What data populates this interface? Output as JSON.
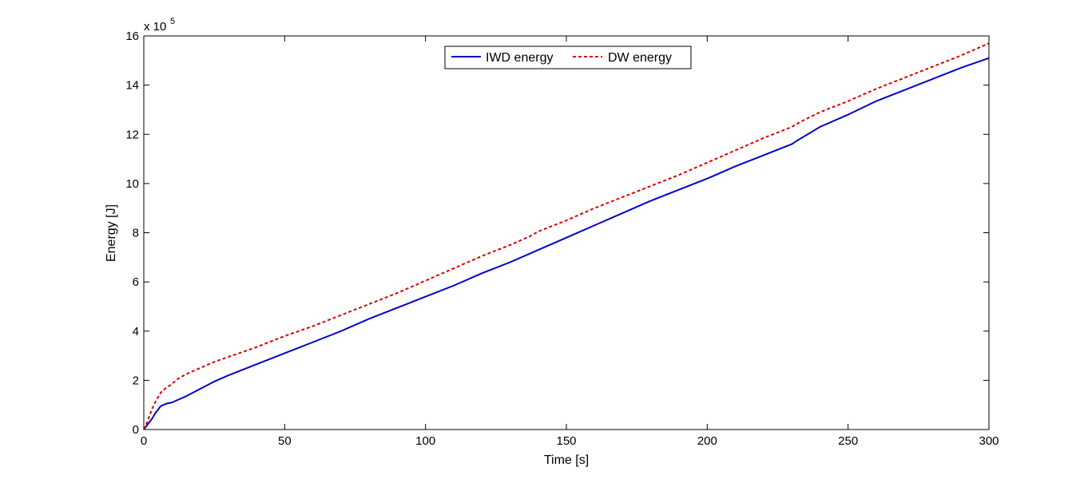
{
  "chart_data": {
    "type": "line",
    "title": "",
    "xlabel": "Time [s]",
    "ylabel": "Energy [J]",
    "xlim": [
      0,
      300
    ],
    "ylim": [
      0,
      16
    ],
    "xticks": [
      0,
      50,
      100,
      150,
      200,
      250,
      300
    ],
    "yticks": [
      0,
      2,
      4,
      6,
      8,
      10,
      12,
      14,
      16
    ],
    "y_multiplier": {
      "base": "x 10",
      "exponent": "5"
    },
    "grid": false,
    "legend_position": "top-center",
    "series": [
      {
        "name": "IWD energy",
        "color": "#0000cc",
        "style": "solid",
        "x": [
          0,
          1,
          2,
          3,
          4,
          5,
          6,
          8,
          10,
          12,
          15,
          20,
          25,
          30,
          40,
          50,
          60,
          70,
          80,
          90,
          100,
          110,
          120,
          130,
          140,
          150,
          160,
          170,
          180,
          190,
          200,
          210,
          220,
          230,
          232,
          240,
          250,
          260,
          270,
          280,
          290,
          300
        ],
        "y": [
          0,
          0.15,
          0.3,
          0.45,
          0.65,
          0.8,
          0.95,
          1.05,
          1.1,
          1.2,
          1.35,
          1.65,
          1.95,
          2.2,
          2.65,
          3.1,
          3.55,
          4.0,
          4.5,
          4.95,
          5.4,
          5.85,
          6.35,
          6.8,
          7.3,
          7.8,
          8.3,
          8.8,
          9.3,
          9.75,
          10.2,
          10.7,
          11.15,
          11.6,
          11.75,
          12.3,
          12.8,
          13.35,
          13.8,
          14.25,
          14.7,
          15.1
        ]
      },
      {
        "name": "DW energy",
        "color": "#dd0000",
        "style": "dashed",
        "x": [
          0,
          1,
          2,
          3,
          4,
          5,
          6,
          8,
          10,
          12,
          15,
          20,
          25,
          30,
          40,
          50,
          60,
          70,
          80,
          90,
          100,
          110,
          120,
          130,
          137,
          140,
          150,
          160,
          170,
          180,
          190,
          200,
          210,
          220,
          230,
          233,
          240,
          250,
          260,
          270,
          280,
          290,
          300
        ],
        "y": [
          0,
          0.25,
          0.55,
          0.85,
          1.1,
          1.3,
          1.5,
          1.7,
          1.85,
          2.05,
          2.25,
          2.5,
          2.75,
          2.95,
          3.35,
          3.8,
          4.2,
          4.65,
          5.1,
          5.55,
          6.05,
          6.55,
          7.05,
          7.5,
          7.85,
          8.05,
          8.5,
          9.0,
          9.45,
          9.9,
          10.35,
          10.85,
          11.35,
          11.85,
          12.3,
          12.5,
          12.9,
          13.35,
          13.85,
          14.3,
          14.75,
          15.2,
          15.7
        ]
      }
    ]
  }
}
